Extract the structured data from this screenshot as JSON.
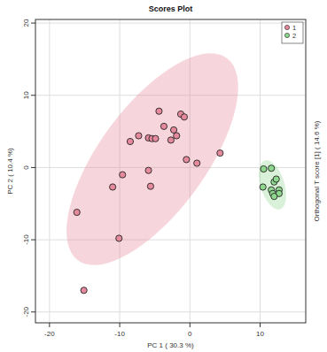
{
  "chart_data": {
    "type": "scatter",
    "title": "Scores Plot",
    "x_label": "PC 1 ( 30.3 %)",
    "y_label": "PC 2 ( 10.4 %)",
    "y2_label": "Orthogonal T score [1] ( 14.6 %)",
    "xlim": [
      -22,
      16.5
    ],
    "ylim": [
      -21.5,
      20.5
    ],
    "xticks": [
      -20,
      -10,
      0,
      10
    ],
    "yticks": [
      -20,
      -10,
      0,
      10,
      20
    ],
    "grid": true,
    "legend": "top-right",
    "marker": "circle",
    "series": [
      {
        "name": "1",
        "color": "#e58a9c",
        "x": [
          -16.1,
          -15.1,
          -10.1,
          -11.0,
          -9.6,
          -8.5,
          -7.3,
          -5.9,
          -5.4,
          -4.9,
          -4.4,
          -3.7,
          -2.7,
          -2.3,
          -1.9,
          -1.3,
          -0.8,
          -5.9,
          -5.6,
          -0.5,
          1.0,
          4.3
        ],
        "values": [
          -6.2,
          -17.0,
          -9.8,
          -2.7,
          -1.0,
          3.6,
          4.4,
          4.1,
          4.0,
          4.0,
          7.8,
          5.7,
          3.8,
          5.2,
          4.4,
          7.4,
          7.0,
          -0.4,
          -2.6,
          1.1,
          0.6,
          2.0
        ]
      },
      {
        "name": "2",
        "color": "#8fd68f",
        "x": [
          10.5,
          11.6,
          10.4,
          12.0,
          12.3,
          11.6,
          12.7,
          11.8,
          12.7,
          12.0
        ],
        "values": [
          -0.2,
          -0.1,
          -2.7,
          -2.0,
          -1.6,
          -3.1,
          -3.1,
          -3.6,
          -3.6,
          -4.0
        ]
      }
    ]
  }
}
